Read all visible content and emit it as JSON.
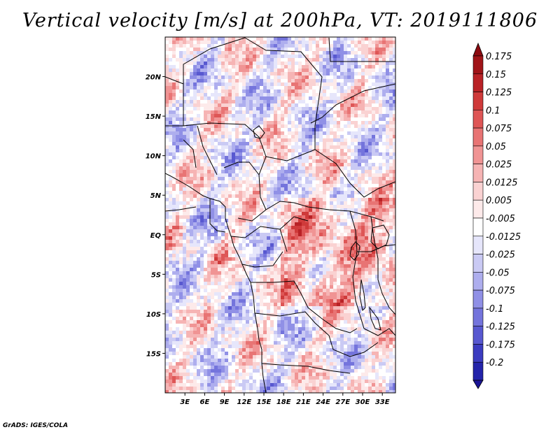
{
  "title": "Vertical velocity [m/s] at 200hPa, VT: 2019111806",
  "footer": "GrADS: IGES/COLA",
  "map": {
    "lon_range": [
      0,
      35
    ],
    "lat_range": [
      -20,
      25
    ],
    "lat_ticks": [
      {
        "value": 20,
        "label": "20N"
      },
      {
        "value": 15,
        "label": "15N"
      },
      {
        "value": 10,
        "label": "10N"
      },
      {
        "value": 5,
        "label": "5N"
      },
      {
        "value": 0,
        "label": "EQ"
      },
      {
        "value": -5,
        "label": "5S"
      },
      {
        "value": -10,
        "label": "10S"
      },
      {
        "value": -15,
        "label": "15S"
      }
    ],
    "lon_ticks": [
      {
        "value": 3,
        "label": "3E"
      },
      {
        "value": 6,
        "label": "6E"
      },
      {
        "value": 9,
        "label": "9E"
      },
      {
        "value": 12,
        "label": "12E"
      },
      {
        "value": 15,
        "label": "15E"
      },
      {
        "value": 18,
        "label": "18E"
      },
      {
        "value": 21,
        "label": "21E"
      },
      {
        "value": 24,
        "label": "24E"
      },
      {
        "value": 27,
        "label": "27E"
      },
      {
        "value": 30,
        "label": "30E"
      },
      {
        "value": 33,
        "label": "33E"
      }
    ]
  },
  "colorbar": {
    "levels": [
      {
        "label": "0.175",
        "color": "#a01418"
      },
      {
        "label": "0.15",
        "color": "#b92226"
      },
      {
        "label": "0.125",
        "color": "#cf3a3a"
      },
      {
        "label": "0.1",
        "color": "#de5656"
      },
      {
        "label": "0.075",
        "color": "#e87474"
      },
      {
        "label": "0.05",
        "color": "#f09494"
      },
      {
        "label": "0.025",
        "color": "#f6b4b4"
      },
      {
        "label": "0.0125",
        "color": "#fad2d2"
      },
      {
        "label": "0.005",
        "color": "#fdeaea"
      },
      {
        "label": "-0.005",
        "color": "#ffffff"
      },
      {
        "label": "-0.0125",
        "color": "#e6e6fb"
      },
      {
        "label": "-0.025",
        "color": "#cacaf4"
      },
      {
        "label": "-0.05",
        "color": "#aeaeee"
      },
      {
        "label": "-0.075",
        "color": "#9090e6"
      },
      {
        "label": "-0.1",
        "color": "#7474dc"
      },
      {
        "label": "-0.125",
        "color": "#5858d0"
      },
      {
        "label": "-0.175",
        "color": "#3c3cc0"
      },
      {
        "label": "-0.2",
        "color": "#2424aa"
      }
    ],
    "top_cap_color": "#8c0a10",
    "bottom_cap_color": "#1a1496"
  },
  "colors": {
    "neutral": "#ffffff",
    "boundary": "#000000"
  }
}
